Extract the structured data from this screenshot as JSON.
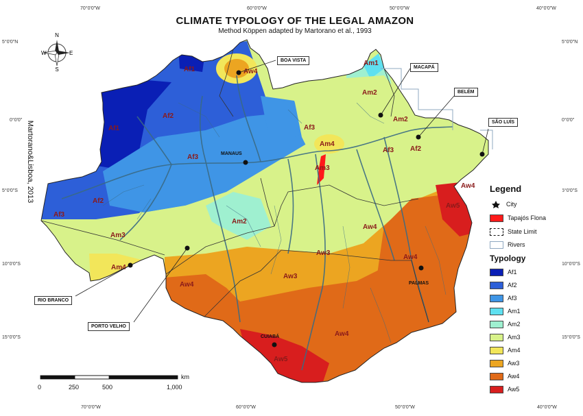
{
  "title": "CLIMATE TYPOLOGY OF THE LEGAL AMAZON",
  "subtitle": "Method Köppen adapted by Martorano et al., 1993",
  "credit": "Martorano&Lisboa, 2013",
  "coords": {
    "top": [
      "70°0'0\"W",
      "60°0'0\"W",
      "50°0'0\"W",
      "40°0'0\"W"
    ],
    "bottom": [
      "70°0'0\"W",
      "60°0'0\"W",
      "50°0'0\"W",
      "40°0'0\"W"
    ],
    "left": [
      "5°0'0\"N",
      "0°0'0\"",
      "5°0'0\"S",
      "10°0'0\"S",
      "15°0'0\"S"
    ],
    "right": [
      "5°0'0\"N",
      "0°0'0\"",
      "5°0'0\"S",
      "10°0'0\"S",
      "15°0'0\"S"
    ]
  },
  "compass": {
    "n": "N",
    "s": "S",
    "e": "E",
    "w": "W"
  },
  "cities": {
    "boa_vista": "BOA VISTA",
    "macapa": "MACAPÁ",
    "belem": "BELÉM",
    "sao_luis": "SÃO LUÍS",
    "manaus": "MANAUS",
    "rio_branco": "RIO BRANCO",
    "porto_velho": "PORTO VELHO",
    "palmas": "PALMAS",
    "cuiaba": "CUIABÁ"
  },
  "zone_labels": {
    "af1_n": "Af1",
    "af1_w": "Af1",
    "af2_nw": "Af2",
    "af2_w": "Af2",
    "af2_belem": "Af2",
    "af3_w": "Af3",
    "af3_c": "Af3",
    "af3_n": "Af3",
    "af3_belem": "Af3",
    "am1": "Am1",
    "am2_n": "Am2",
    "am2_c": "Am2",
    "am2_e": "Am2",
    "am3_c": "Am3",
    "am3_w": "Am3",
    "am4_n": "Am4",
    "am4_rb": "Am4",
    "aw4_bv": "Aw4",
    "aw4_e": "Aw4",
    "aw4_ne": "Aw4",
    "aw4_sw": "Aw4",
    "aw4_s": "Aw4",
    "aw4_pal": "Aw4",
    "aw3_c": "Aw3",
    "aw3_s": "Aw3",
    "aw5_ne": "Aw5",
    "aw5_s": "Aw5"
  },
  "legend": {
    "title": "Legend",
    "city": "City",
    "tapajos": "Tapajós Flona",
    "state_limit": "State Limit",
    "rivers": "Rivers",
    "typology_title": "Typology",
    "typology": [
      {
        "code": "Af1",
        "color": "#0a1fb5"
      },
      {
        "code": "Af2",
        "color": "#2d5fd8"
      },
      {
        "code": "Af3",
        "color": "#3f95e6"
      },
      {
        "code": "Am1",
        "color": "#5fe0f0"
      },
      {
        "code": "Am2",
        "color": "#9ff0d0"
      },
      {
        "code": "Am3",
        "color": "#d8f28a"
      },
      {
        "code": "Am4",
        "color": "#f2e65a"
      },
      {
        "code": "Aw3",
        "color": "#eca521"
      },
      {
        "code": "Aw4",
        "color": "#e06a18"
      },
      {
        "code": "Aw5",
        "color": "#d81e1e"
      }
    ]
  },
  "scale": {
    "unit": "km",
    "ticks": [
      "0",
      "250",
      "500",
      "1,000"
    ]
  }
}
